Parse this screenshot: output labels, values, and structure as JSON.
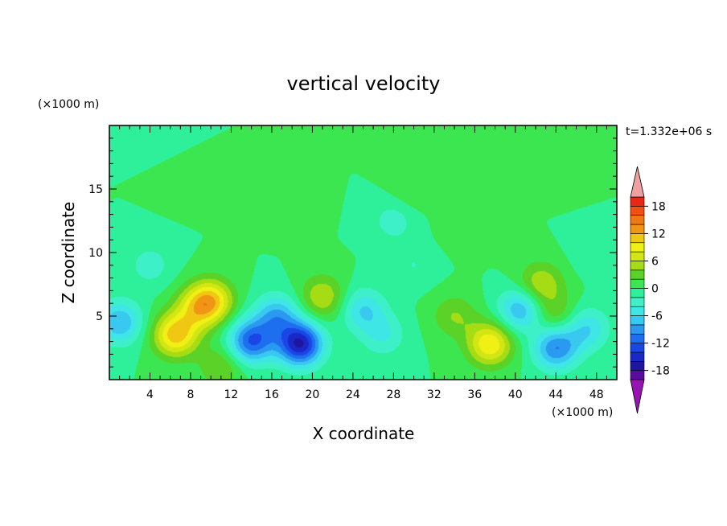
{
  "chart_data": {
    "type": "heatmap",
    "title": "vertical velocity",
    "xlabel": "X coordinate",
    "ylabel": "Z coordinate",
    "x_unit": "(×1000 m)",
    "y_unit": "(×1000 m)",
    "time_label": "t=1.332e+06 s",
    "xlim": [
      0,
      50
    ],
    "ylim": [
      0,
      20
    ],
    "x_ticks": [
      4,
      8,
      12,
      16,
      20,
      24,
      28,
      32,
      36,
      40,
      44,
      48
    ],
    "y_ticks": [
      5,
      10,
      15
    ],
    "colorbar": {
      "levels": [
        -20,
        -18,
        -16,
        -14,
        -12,
        -10,
        -8,
        -6,
        -4,
        -2,
        0,
        2,
        4,
        6,
        8,
        10,
        12,
        14,
        16,
        18,
        20
      ],
      "colors": [
        "#5a0aa0",
        "#1e16a0",
        "#1a28c8",
        "#1a46e6",
        "#1e6ef0",
        "#2a9af0",
        "#38c8f0",
        "#3ee6e6",
        "#3ef0c8",
        "#2ef09a",
        "#3ce650",
        "#5ad228",
        "#a6dc14",
        "#d2e614",
        "#f0f014",
        "#f0c814",
        "#f09614",
        "#f07814",
        "#f05014",
        "#e62814"
      ],
      "tick_labels": [
        "18",
        "12",
        "6",
        "0",
        "-6",
        "-12",
        "-18"
      ],
      "tick_values": [
        18,
        12,
        6,
        0,
        -6,
        -12,
        -18
      ],
      "extend_high_color": "#f0a0a0",
      "extend_low_color": "#9614b4"
    },
    "features": [
      {
        "x": 6.5,
        "z": 3.5,
        "value": 11
      },
      {
        "x": 10.0,
        "z": 6.2,
        "value": 10
      },
      {
        "x": 8.5,
        "z": 5.5,
        "value": 6
      },
      {
        "x": 14.0,
        "z": 3.0,
        "value": -12
      },
      {
        "x": 18.8,
        "z": 2.8,
        "value": -16
      },
      {
        "x": 16.5,
        "z": 5.0,
        "value": -8
      },
      {
        "x": 21.0,
        "z": 6.5,
        "value": 6
      },
      {
        "x": 37.5,
        "z": 2.8,
        "value": 10
      },
      {
        "x": 34.0,
        "z": 5.0,
        "value": 4
      },
      {
        "x": 42.5,
        "z": 7.5,
        "value": 6
      },
      {
        "x": 44.0,
        "z": 5.0,
        "value": 4
      },
      {
        "x": 25.0,
        "z": 5.5,
        "value": -6
      },
      {
        "x": 44.0,
        "z": 2.5,
        "value": -10
      },
      {
        "x": 40.5,
        "z": 5.5,
        "value": -8
      },
      {
        "x": 1.0,
        "z": 4.5,
        "value": -8
      },
      {
        "x": 11.0,
        "z": 1.0,
        "value": 4
      },
      {
        "x": 27.0,
        "z": 3.5,
        "value": -4
      },
      {
        "x": 47.0,
        "z": 4.0,
        "value": -6
      },
      {
        "x": 30.0,
        "z": 15.0,
        "value": 2
      },
      {
        "x": 8.0,
        "z": 16.0,
        "value": 2
      },
      {
        "x": 35.0,
        "z": 12.0,
        "value": 2
      },
      {
        "x": 18.0,
        "z": 14.0,
        "value": 2
      },
      {
        "x": 45.0,
        "z": 17.0,
        "value": 2
      },
      {
        "x": 30.0,
        "z": 9.0,
        "value": -2
      },
      {
        "x": 4.0,
        "z": 9.0,
        "value": -3
      },
      {
        "x": 48.0,
        "z": 10.0,
        "value": -2
      },
      {
        "x": 24.0,
        "z": 19.0,
        "value": 0
      },
      {
        "x": 28.0,
        "z": 12.5,
        "value": -3
      },
      {
        "x": 6.0,
        "z": 19.0,
        "value": -1
      }
    ]
  }
}
